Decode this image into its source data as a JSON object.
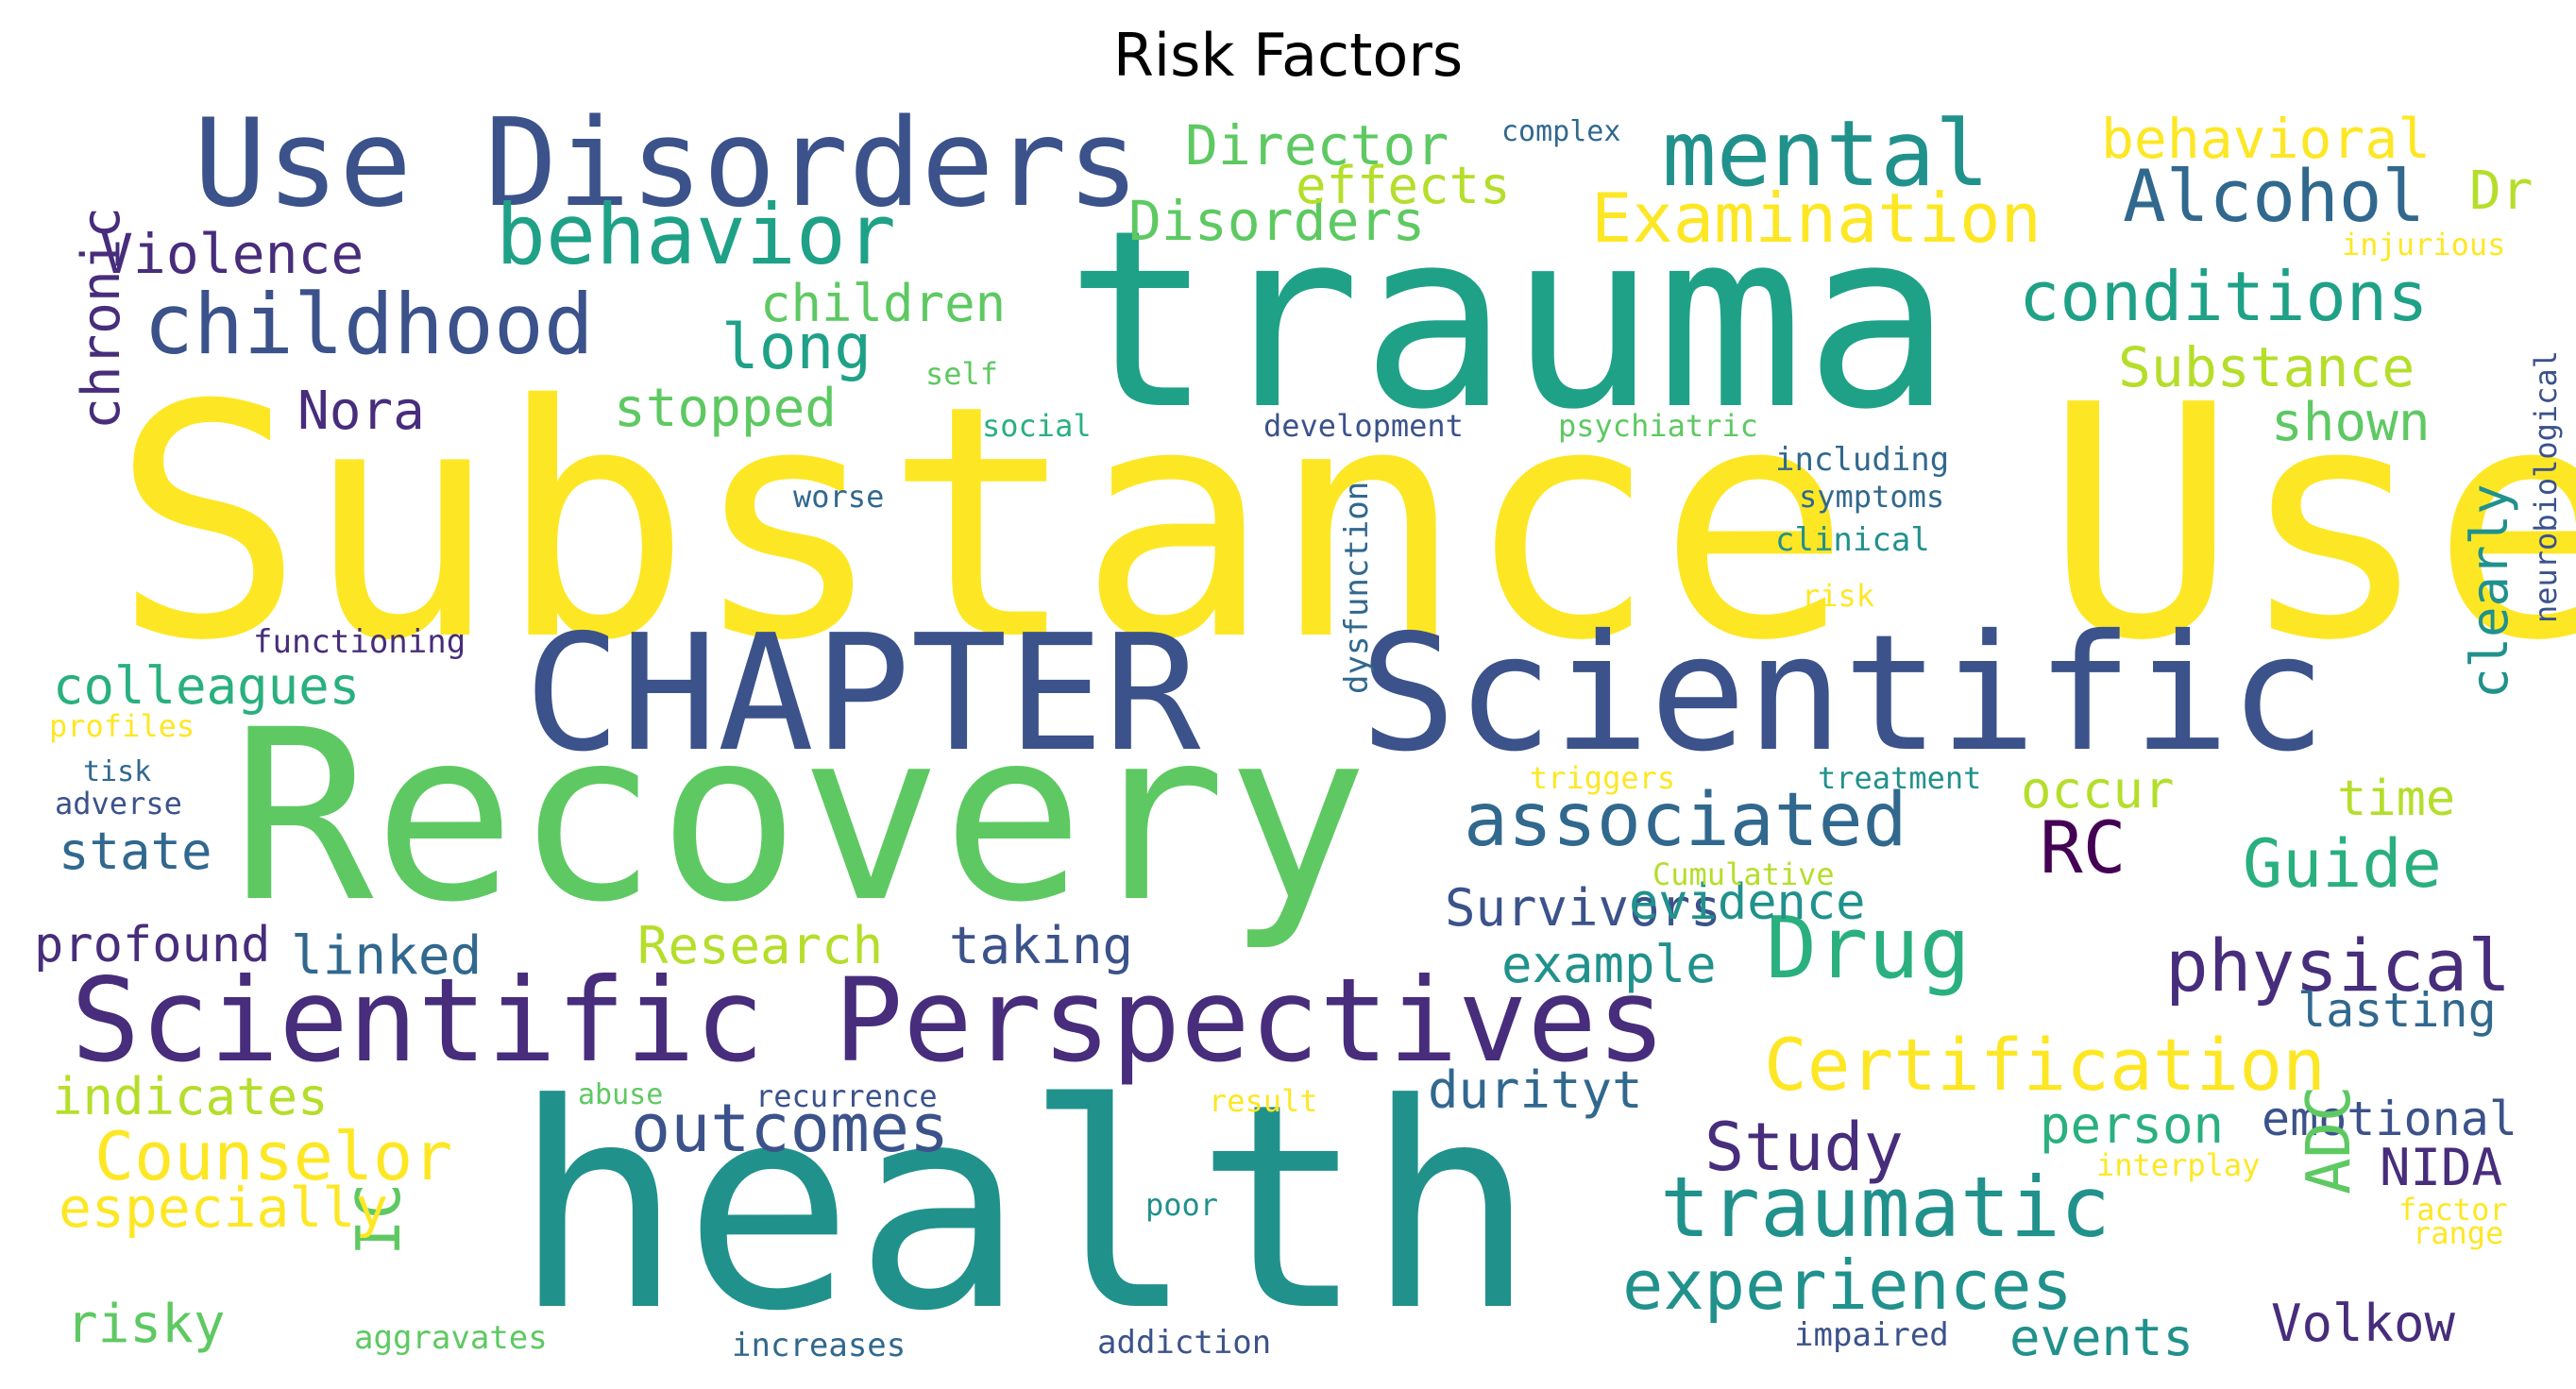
{
  "title": "Risk Factors",
  "palette": {
    "yellow": "#fde725",
    "lightgreen": "#5ec962",
    "green": "#21918c",
    "teal": "#1fa187",
    "blue": "#3b528b",
    "navy": "#31688e",
    "purple": "#440154",
    "violet": "#472d7b",
    "lime": "#b5de2b"
  },
  "words": [
    {
      "text": "Substance Use",
      "color": "#fde725"
    },
    {
      "text": "trauma",
      "color": "#1fa187"
    },
    {
      "text": "health",
      "color": "#21918c"
    },
    {
      "text": "Recovery",
      "color": "#5ec962"
    },
    {
      "text": "CHAPTER",
      "color": "#3b528b"
    },
    {
      "text": "Scientific",
      "color": "#3b528b"
    },
    {
      "text": "Use Disorders",
      "color": "#3b528b"
    },
    {
      "text": "Scientific Perspectives",
      "color": "#472d7b"
    },
    {
      "text": "mental",
      "color": "#21918c"
    },
    {
      "text": "behavior",
      "color": "#1fa187"
    },
    {
      "text": "childhood",
      "color": "#3b528b"
    },
    {
      "text": "Examination",
      "color": "#fde725"
    },
    {
      "text": "Alcohol",
      "color": "#31688e"
    },
    {
      "text": "conditions",
      "color": "#1fa187"
    },
    {
      "text": "associated",
      "color": "#31688e"
    },
    {
      "text": "Drug",
      "color": "#2ab07f"
    },
    {
      "text": "physical",
      "color": "#472d7b"
    },
    {
      "text": "Certification",
      "color": "#fde725"
    },
    {
      "text": "traumatic",
      "color": "#21918c"
    },
    {
      "text": "experiences",
      "color": "#21918c"
    },
    {
      "text": "outcomes",
      "color": "#3b528b"
    },
    {
      "text": "Counselor",
      "color": "#fde725"
    },
    {
      "text": "Study",
      "color": "#472d7b"
    },
    {
      "text": "Guide",
      "color": "#2ab07f"
    },
    {
      "text": "RC",
      "color": "#440154"
    },
    {
      "text": "behavioral",
      "color": "#fde725"
    },
    {
      "text": "Director",
      "color": "#5ec962"
    },
    {
      "text": "Disorders",
      "color": "#5ec962"
    },
    {
      "text": "effects",
      "color": "#b5de2b"
    },
    {
      "text": "Violence",
      "color": "#472d7b"
    },
    {
      "text": "long",
      "color": "#1fa187"
    },
    {
      "text": "children",
      "color": "#5ec962"
    },
    {
      "text": "Substance",
      "color": "#b5de2b"
    },
    {
      "text": "Nora",
      "color": "#472d7b"
    },
    {
      "text": "stopped",
      "color": "#5ec962"
    },
    {
      "text": "shown",
      "color": "#5ec962"
    },
    {
      "text": "chronic",
      "color": "#472d7b"
    },
    {
      "text": "colleagues",
      "color": "#2ab07f"
    },
    {
      "text": "state",
      "color": "#31688e"
    },
    {
      "text": "profound",
      "color": "#472d7b"
    },
    {
      "text": "linked",
      "color": "#31688e"
    },
    {
      "text": "Research",
      "color": "#b5de2b"
    },
    {
      "text": "taking",
      "color": "#3b528b"
    },
    {
      "text": "Survivors",
      "color": "#3b528b"
    },
    {
      "text": "evidence",
      "color": "#21918c"
    },
    {
      "text": "example",
      "color": "#21918c"
    },
    {
      "text": "occur",
      "color": "#b5de2b"
    },
    {
      "text": "time",
      "color": "#b5de2b"
    },
    {
      "text": "clearly",
      "color": "#21918c"
    },
    {
      "text": "lasting",
      "color": "#31688e"
    },
    {
      "text": "Dr",
      "color": "#b5de2b"
    },
    {
      "text": "indicates",
      "color": "#b5de2b"
    },
    {
      "text": "durityt",
      "color": "#31688e"
    },
    {
      "text": "person",
      "color": "#2ab07f"
    },
    {
      "text": "emotional",
      "color": "#3b528b"
    },
    {
      "text": "NIDA",
      "color": "#472d7b"
    },
    {
      "text": "ADC",
      "color": "#5ec962"
    },
    {
      "text": "IC",
      "color": "#5ec962"
    },
    {
      "text": "especially",
      "color": "#fde725"
    },
    {
      "text": "risky",
      "color": "#5ec962"
    },
    {
      "text": "events",
      "color": "#21918c"
    },
    {
      "text": "Volkow",
      "color": "#472d7b"
    },
    {
      "text": "complex",
      "color": "#31688e"
    },
    {
      "text": "injurious",
      "color": "#fde725"
    },
    {
      "text": "neurobiological",
      "color": "#3b528b"
    },
    {
      "text": "self",
      "color": "#5ec962"
    },
    {
      "text": "social",
      "color": "#2ab07f"
    },
    {
      "text": "development",
      "color": "#3b528b"
    },
    {
      "text": "psychiatric",
      "color": "#5ec962"
    },
    {
      "text": "including",
      "color": "#31688e"
    },
    {
      "text": "symptoms",
      "color": "#31688e"
    },
    {
      "text": "clinical",
      "color": "#21918c"
    },
    {
      "text": "worse",
      "color": "#31688e"
    },
    {
      "text": "risk",
      "color": "#fde725"
    },
    {
      "text": "dysfunction",
      "color": "#31688e"
    },
    {
      "text": "functioning",
      "color": "#472d7b"
    },
    {
      "text": "profiles",
      "color": "#fde725"
    },
    {
      "text": "tisk",
      "color": "#31688e"
    },
    {
      "text": "adverse",
      "color": "#3b528b"
    },
    {
      "text": "triggers",
      "color": "#fde725"
    },
    {
      "text": "treatment",
      "color": "#21918c"
    },
    {
      "text": "Cumulative",
      "color": "#b5de2b"
    },
    {
      "text": "abuse",
      "color": "#5ec962"
    },
    {
      "text": "recurrence",
      "color": "#3b528b"
    },
    {
      "text": "result",
      "color": "#fde725"
    },
    {
      "text": "interplay",
      "color": "#fde725"
    },
    {
      "text": "factor",
      "color": "#fde725"
    },
    {
      "text": "range",
      "color": "#fde725"
    },
    {
      "text": "poor",
      "color": "#21918c"
    },
    {
      "text": "aggravates",
      "color": "#5ec962"
    },
    {
      "text": "increases",
      "color": "#31688e"
    },
    {
      "text": "addiction",
      "color": "#3b528b"
    },
    {
      "text": "impaired",
      "color": "#3b528b"
    }
  ]
}
